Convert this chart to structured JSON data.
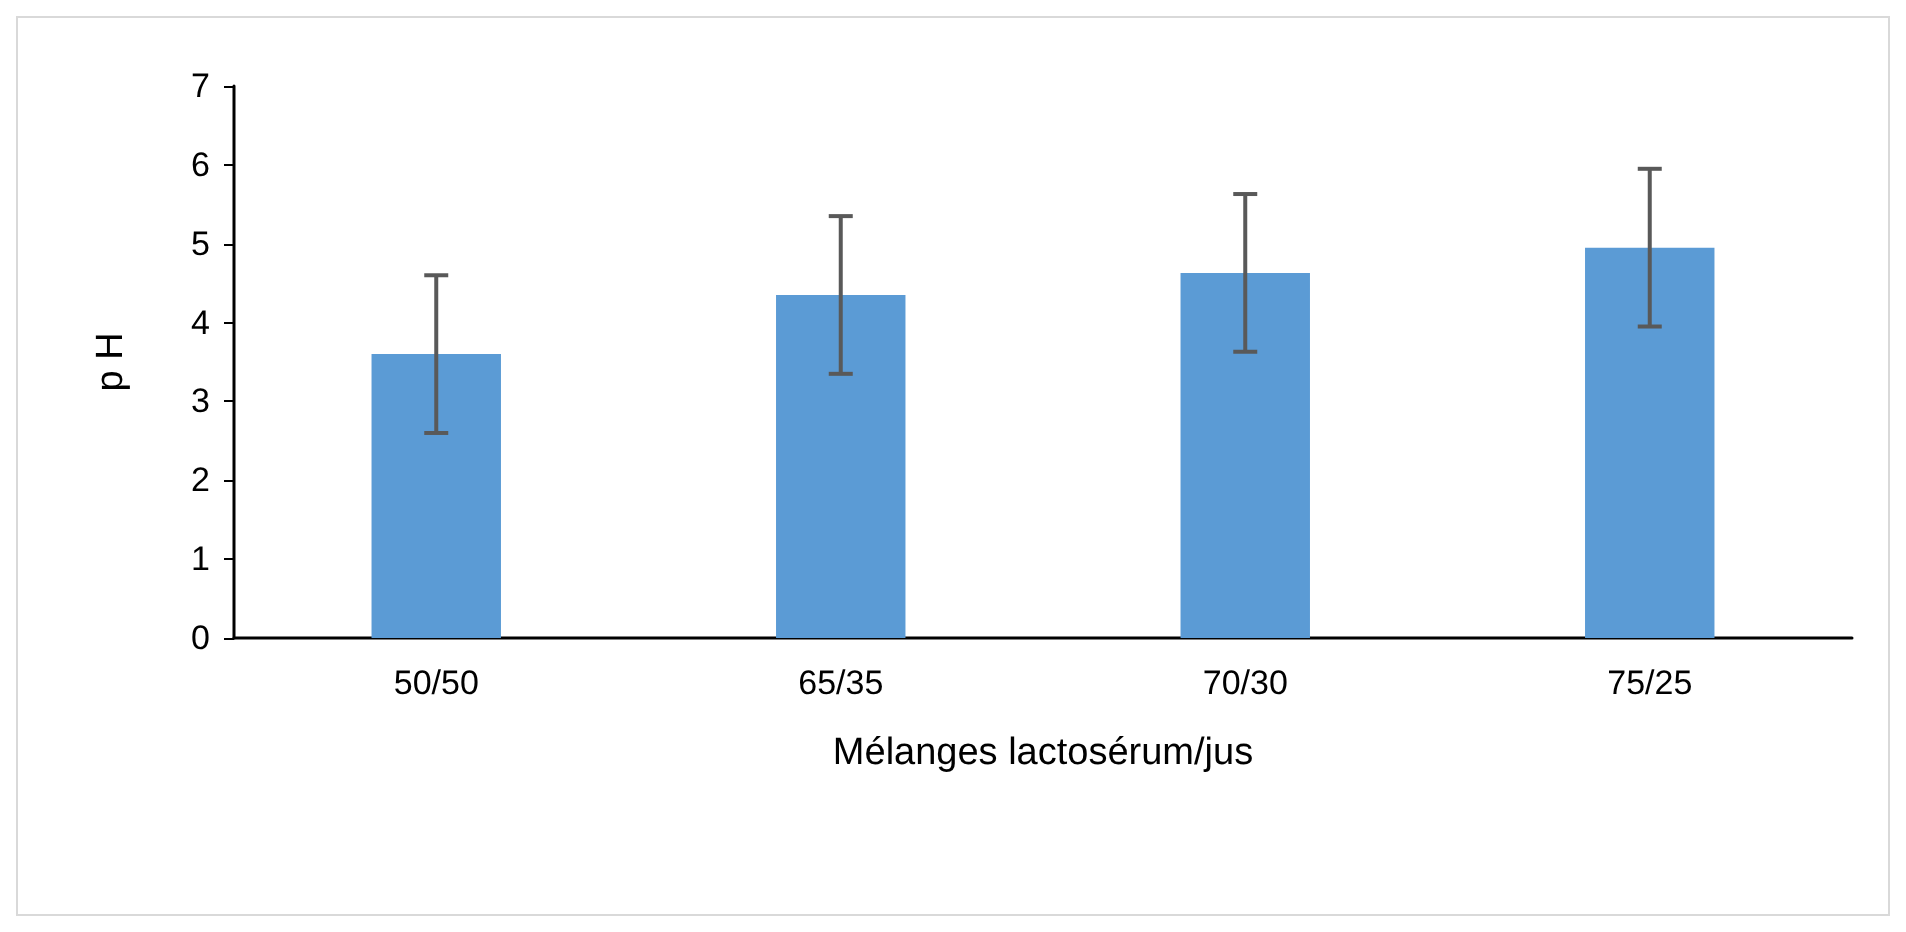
{
  "chart_data": {
    "type": "bar",
    "xlabel": "Mélanges lactosérum/jus",
    "ylabel": "p H",
    "categories": [
      "50/50",
      "65/35",
      "70/30",
      "75/25"
    ],
    "values": [
      3.6,
      4.35,
      4.63,
      4.95
    ],
    "errors": [
      1,
      1,
      1,
      1
    ],
    "color": "#5b9bd5",
    "ylim": [
      0,
      7
    ],
    "yticks": [
      0,
      1,
      2,
      3,
      4,
      5,
      6,
      7
    ],
    "grid": false
  }
}
